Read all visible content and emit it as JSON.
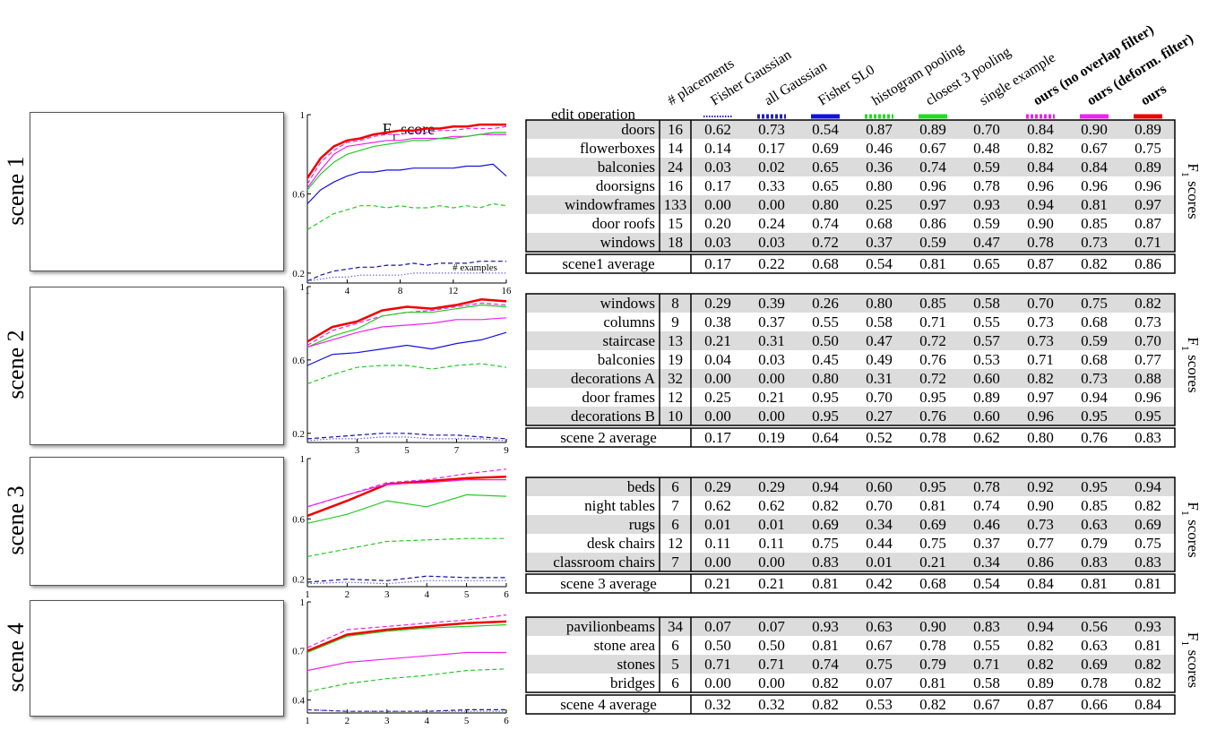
{
  "chart_title": "score",
  "chart_title_main": "F",
  "chart_title_sub": "1",
  "side_label_main": "F",
  "side_label_sub": "1",
  "side_label_rest": "scores",
  "examples_label": "# examples",
  "header": {
    "edit_operation": "edit operation",
    "placements": "# placements",
    "methods": [
      {
        "name": "Fisher Gaussian",
        "color": "#1f1fbf",
        "style": "dotted"
      },
      {
        "name": "all Gaussian",
        "color": "#1f1fbf",
        "style": "dashed"
      },
      {
        "name": "Fisher SL0",
        "color": "#1111dd",
        "style": "solid"
      },
      {
        "name": "histogram pooling",
        "color": "#22dd22",
        "style": "dashed"
      },
      {
        "name": "closest 3 pooling",
        "color": "#22dd22",
        "style": "solid"
      },
      {
        "name": "single example",
        "color": "#dd22dd",
        "style": "none"
      },
      {
        "name": "ours (no overlap filter)",
        "color": "#ee22ee",
        "style": "dashed",
        "bold": true
      },
      {
        "name": "ours (deform. filter)",
        "color": "#ee22ee",
        "style": "solid",
        "bold": true
      },
      {
        "name": "ours",
        "color": "#ee0000",
        "style": "solid",
        "bold": true
      }
    ]
  },
  "scenes": [
    {
      "label": "scene 1",
      "average_label": "scene1 average",
      "rows": [
        {
          "op": "doors",
          "n": "16",
          "v": [
            "0.62",
            "0.73",
            "0.54",
            "0.87",
            "0.89",
            "0.70",
            "0.84",
            "0.90",
            "0.89"
          ]
        },
        {
          "op": "flowerboxes",
          "n": "14",
          "v": [
            "0.14",
            "0.17",
            "0.69",
            "0.46",
            "0.67",
            "0.48",
            "0.82",
            "0.67",
            "0.75"
          ]
        },
        {
          "op": "balconies",
          "n": "24",
          "v": [
            "0.03",
            "0.02",
            "0.65",
            "0.36",
            "0.74",
            "0.59",
            "0.84",
            "0.84",
            "0.89"
          ]
        },
        {
          "op": "doorsigns",
          "n": "16",
          "v": [
            "0.17",
            "0.33",
            "0.65",
            "0.80",
            "0.96",
            "0.78",
            "0.96",
            "0.96",
            "0.96"
          ]
        },
        {
          "op": "windowframes",
          "n": "133",
          "v": [
            "0.00",
            "0.00",
            "0.80",
            "0.25",
            "0.97",
            "0.93",
            "0.94",
            "0.81",
            "0.97"
          ]
        },
        {
          "op": "door roofs",
          "n": "15",
          "v": [
            "0.20",
            "0.24",
            "0.74",
            "0.68",
            "0.86",
            "0.59",
            "0.90",
            "0.85",
            "0.87"
          ]
        },
        {
          "op": "windows",
          "n": "18",
          "v": [
            "0.03",
            "0.03",
            "0.72",
            "0.37",
            "0.59",
            "0.47",
            "0.78",
            "0.73",
            "0.71"
          ]
        }
      ],
      "average": [
        "0.17",
        "0.22",
        "0.68",
        "0.54",
        "0.81",
        "0.65",
        "0.87",
        "0.82",
        "0.86"
      ]
    },
    {
      "label": "scene 2",
      "average_label": "scene 2 average",
      "rows": [
        {
          "op": "windows",
          "n": "8",
          "v": [
            "0.29",
            "0.39",
            "0.26",
            "0.80",
            "0.85",
            "0.58",
            "0.70",
            "0.75",
            "0.82"
          ]
        },
        {
          "op": "columns",
          "n": "9",
          "v": [
            "0.38",
            "0.37",
            "0.55",
            "0.58",
            "0.71",
            "0.55",
            "0.73",
            "0.68",
            "0.73"
          ]
        },
        {
          "op": "staircase",
          "n": "13",
          "v": [
            "0.21",
            "0.31",
            "0.50",
            "0.47",
            "0.72",
            "0.57",
            "0.73",
            "0.59",
            "0.70"
          ]
        },
        {
          "op": "balconies",
          "n": "19",
          "v": [
            "0.04",
            "0.03",
            "0.45",
            "0.49",
            "0.76",
            "0.53",
            "0.71",
            "0.68",
            "0.77"
          ]
        },
        {
          "op": "decorations A",
          "n": "32",
          "v": [
            "0.00",
            "0.00",
            "0.80",
            "0.31",
            "0.72",
            "0.60",
            "0.82",
            "0.73",
            "0.88"
          ]
        },
        {
          "op": "door frames",
          "n": "12",
          "v": [
            "0.25",
            "0.21",
            "0.95",
            "0.70",
            "0.95",
            "0.89",
            "0.97",
            "0.94",
            "0.96"
          ]
        },
        {
          "op": "decorations B",
          "n": "10",
          "v": [
            "0.00",
            "0.00",
            "0.95",
            "0.27",
            "0.76",
            "0.60",
            "0.96",
            "0.95",
            "0.95"
          ]
        }
      ],
      "average": [
        "0.17",
        "0.19",
        "0.64",
        "0.52",
        "0.78",
        "0.62",
        "0.80",
        "0.76",
        "0.83"
      ]
    },
    {
      "label": "scene 3",
      "average_label": "scene 3 average",
      "rows": [
        {
          "op": "beds",
          "n": "6",
          "v": [
            "0.29",
            "0.29",
            "0.94",
            "0.60",
            "0.95",
            "0.78",
            "0.92",
            "0.95",
            "0.94"
          ]
        },
        {
          "op": "night tables",
          "n": "7",
          "v": [
            "0.62",
            "0.62",
            "0.82",
            "0.70",
            "0.81",
            "0.74",
            "0.90",
            "0.85",
            "0.82"
          ]
        },
        {
          "op": "rugs",
          "n": "6",
          "v": [
            "0.01",
            "0.01",
            "0.69",
            "0.34",
            "0.69",
            "0.46",
            "0.73",
            "0.63",
            "0.69"
          ]
        },
        {
          "op": "desk chairs",
          "n": "12",
          "v": [
            "0.11",
            "0.11",
            "0.75",
            "0.44",
            "0.75",
            "0.37",
            "0.77",
            "0.79",
            "0.75"
          ]
        },
        {
          "op": "classroom chairs",
          "n": "7",
          "v": [
            "0.00",
            "0.00",
            "0.83",
            "0.01",
            "0.21",
            "0.34",
            "0.86",
            "0.83",
            "0.83"
          ]
        }
      ],
      "average": [
        "0.21",
        "0.21",
        "0.81",
        "0.42",
        "0.68",
        "0.54",
        "0.84",
        "0.81",
        "0.81"
      ]
    },
    {
      "label": "scene 4",
      "average_label": "scene 4 average",
      "rows": [
        {
          "op": "pavilionbeams",
          "n": "34",
          "v": [
            "0.07",
            "0.07",
            "0.93",
            "0.63",
            "0.90",
            "0.83",
            "0.94",
            "0.56",
            "0.93"
          ]
        },
        {
          "op": "stone area",
          "n": "6",
          "v": [
            "0.50",
            "0.50",
            "0.81",
            "0.67",
            "0.78",
            "0.55",
            "0.82",
            "0.63",
            "0.81"
          ]
        },
        {
          "op": "stones",
          "n": "5",
          "v": [
            "0.71",
            "0.71",
            "0.74",
            "0.75",
            "0.79",
            "0.71",
            "0.82",
            "0.69",
            "0.82"
          ]
        },
        {
          "op": "bridges",
          "n": "6",
          "v": [
            "0.00",
            "0.00",
            "0.82",
            "0.07",
            "0.81",
            "0.58",
            "0.89",
            "0.78",
            "0.82"
          ]
        }
      ],
      "average": [
        "0.32",
        "0.32",
        "0.82",
        "0.53",
        "0.82",
        "0.67",
        "0.87",
        "0.66",
        "0.84"
      ]
    }
  ],
  "chart_data": [
    {
      "type": "line",
      "title": "F1 score",
      "xlabel": "# examples",
      "xlim": [
        1,
        16
      ],
      "ylim": [
        0.15,
        1.0
      ],
      "xticks": [
        1,
        4,
        8,
        12,
        16
      ],
      "yticks": [
        0.2,
        0.6,
        1
      ],
      "x": [
        1,
        2,
        3,
        4,
        5,
        6,
        7,
        8,
        9,
        10,
        11,
        12,
        13,
        14,
        15,
        16
      ],
      "series": [
        {
          "color": "#ee0000",
          "style": "solid",
          "width": 2.5,
          "values": [
            0.68,
            0.78,
            0.84,
            0.87,
            0.88,
            0.9,
            0.91,
            0.92,
            0.92,
            0.93,
            0.93,
            0.94,
            0.94,
            0.95,
            0.95,
            0.95
          ]
        },
        {
          "color": "#ee22ee",
          "style": "dashed",
          "width": 1.2,
          "values": [
            0.65,
            0.76,
            0.82,
            0.86,
            0.87,
            0.89,
            0.9,
            0.9,
            0.91,
            0.91,
            0.92,
            0.92,
            0.93,
            0.93,
            0.93,
            0.94
          ]
        },
        {
          "color": "#ee22ee",
          "style": "solid",
          "width": 1.2,
          "values": [
            0.63,
            0.72,
            0.8,
            0.84,
            0.85,
            0.86,
            0.87,
            0.87,
            0.88,
            0.88,
            0.88,
            0.89,
            0.89,
            0.9,
            0.9,
            0.9
          ]
        },
        {
          "color": "#22cc22",
          "style": "solid",
          "width": 1.2,
          "values": [
            0.62,
            0.7,
            0.76,
            0.8,
            0.82,
            0.84,
            0.85,
            0.86,
            0.87,
            0.87,
            0.88,
            0.88,
            0.89,
            0.9,
            0.91,
            0.91
          ]
        },
        {
          "color": "#22cc22",
          "style": "dashed",
          "width": 1.2,
          "values": [
            0.42,
            0.46,
            0.5,
            0.52,
            0.54,
            0.54,
            0.53,
            0.54,
            0.53,
            0.53,
            0.54,
            0.53,
            0.54,
            0.53,
            0.55,
            0.54
          ]
        },
        {
          "color": "#1111dd",
          "style": "solid",
          "width": 1.2,
          "values": [
            0.55,
            0.62,
            0.66,
            0.69,
            0.71,
            0.71,
            0.72,
            0.72,
            0.73,
            0.73,
            0.73,
            0.73,
            0.74,
            0.74,
            0.75,
            0.69
          ]
        },
        {
          "color": "#1111aa",
          "style": "dashed",
          "width": 1.2,
          "values": [
            0.16,
            0.19,
            0.21,
            0.22,
            0.23,
            0.23,
            0.24,
            0.24,
            0.25,
            0.24,
            0.25,
            0.25,
            0.25,
            0.26,
            0.26,
            0.26
          ]
        },
        {
          "color": "#6666ee",
          "style": "dotted",
          "width": 1.2,
          "values": [
            0.16,
            0.17,
            0.18,
            0.18,
            0.19,
            0.19,
            0.19,
            0.19,
            0.2,
            0.2,
            0.2,
            0.2,
            0.2,
            0.2,
            0.2,
            0.2
          ]
        }
      ]
    },
    {
      "type": "line",
      "xlim": [
        1,
        9
      ],
      "ylim": [
        0.15,
        1.0
      ],
      "xticks": [
        3,
        5,
        7,
        9
      ],
      "yticks": [
        0.2,
        0.6,
        1
      ],
      "x": [
        1,
        2,
        3,
        4,
        5,
        6,
        7,
        8,
        9
      ],
      "series": [
        {
          "color": "#ee0000",
          "style": "solid",
          "width": 2.5,
          "values": [
            0.7,
            0.78,
            0.81,
            0.87,
            0.89,
            0.88,
            0.9,
            0.93,
            0.92
          ]
        },
        {
          "color": "#ee22ee",
          "style": "dashed",
          "width": 1.2,
          "values": [
            0.68,
            0.76,
            0.8,
            0.84,
            0.86,
            0.87,
            0.89,
            0.91,
            0.9
          ]
        },
        {
          "color": "#22cc22",
          "style": "solid",
          "width": 1.2,
          "values": [
            0.67,
            0.73,
            0.77,
            0.84,
            0.86,
            0.86,
            0.88,
            0.9,
            0.89
          ]
        },
        {
          "color": "#ee22ee",
          "style": "solid",
          "width": 1.2,
          "values": [
            0.67,
            0.71,
            0.75,
            0.78,
            0.79,
            0.8,
            0.82,
            0.82,
            0.83
          ]
        },
        {
          "color": "#1111dd",
          "style": "solid",
          "width": 1.2,
          "values": [
            0.57,
            0.63,
            0.64,
            0.66,
            0.68,
            0.66,
            0.69,
            0.71,
            0.75
          ]
        },
        {
          "color": "#22cc22",
          "style": "dashed",
          "width": 1.2,
          "values": [
            0.47,
            0.52,
            0.56,
            0.57,
            0.57,
            0.55,
            0.57,
            0.58,
            0.56
          ]
        },
        {
          "color": "#1111aa",
          "style": "dashed",
          "width": 1.2,
          "values": [
            0.17,
            0.18,
            0.19,
            0.2,
            0.2,
            0.19,
            0.19,
            0.18,
            0.17
          ]
        },
        {
          "color": "#6666ee",
          "style": "dotted",
          "width": 1.2,
          "values": [
            0.16,
            0.17,
            0.17,
            0.18,
            0.18,
            0.17,
            0.17,
            0.17,
            0.16
          ]
        }
      ]
    },
    {
      "type": "line",
      "xlim": [
        1,
        6
      ],
      "ylim": [
        0.15,
        1.0
      ],
      "xticks": [
        1,
        2,
        3,
        4,
        5,
        6
      ],
      "yticks": [
        0.2,
        0.6,
        1
      ],
      "x": [
        1,
        2,
        3,
        4,
        5,
        6
      ],
      "series": [
        {
          "color": "#ee0000",
          "style": "solid",
          "width": 2.5,
          "values": [
            0.62,
            0.72,
            0.83,
            0.85,
            0.87,
            0.88
          ]
        },
        {
          "color": "#ee22ee",
          "style": "dashed",
          "width": 1.2,
          "values": [
            0.68,
            0.76,
            0.84,
            0.86,
            0.9,
            0.93
          ]
        },
        {
          "color": "#ee22ee",
          "style": "solid",
          "width": 1.2,
          "values": [
            0.68,
            0.76,
            0.83,
            0.84,
            0.86,
            0.86
          ]
        },
        {
          "color": "#22cc22",
          "style": "solid",
          "width": 1.2,
          "values": [
            0.57,
            0.63,
            0.72,
            0.68,
            0.76,
            0.75
          ]
        },
        {
          "color": "#22cc22",
          "style": "dashed",
          "width": 1.2,
          "values": [
            0.35,
            0.4,
            0.45,
            0.46,
            0.47,
            0.47
          ]
        },
        {
          "color": "#1111aa",
          "style": "dashed",
          "width": 1.2,
          "values": [
            0.18,
            0.2,
            0.19,
            0.22,
            0.21,
            0.21
          ]
        },
        {
          "color": "#6666ee",
          "style": "dotted",
          "width": 1.2,
          "values": [
            0.17,
            0.18,
            0.17,
            0.19,
            0.19,
            0.19
          ]
        }
      ]
    },
    {
      "type": "line",
      "xlim": [
        1,
        6
      ],
      "ylim": [
        0.32,
        1.0
      ],
      "xticks": [
        1,
        2,
        3,
        4,
        5,
        6
      ],
      "yticks": [
        0.4,
        0.7,
        1
      ],
      "x": [
        1,
        2,
        3,
        4,
        5,
        6
      ],
      "series": [
        {
          "color": "#ee0000",
          "style": "solid",
          "width": 2.5,
          "values": [
            0.7,
            0.8,
            0.83,
            0.85,
            0.87,
            0.88
          ]
        },
        {
          "color": "#ee22ee",
          "style": "dashed",
          "width": 1.2,
          "values": [
            0.72,
            0.83,
            0.85,
            0.87,
            0.89,
            0.92
          ]
        },
        {
          "color": "#22cc22",
          "style": "solid",
          "width": 1.2,
          "values": [
            0.69,
            0.79,
            0.82,
            0.84,
            0.85,
            0.86
          ]
        },
        {
          "color": "#ee22ee",
          "style": "solid",
          "width": 1.2,
          "values": [
            0.58,
            0.63,
            0.65,
            0.67,
            0.69,
            0.69
          ]
        },
        {
          "color": "#22cc22",
          "style": "dashed",
          "width": 1.2,
          "values": [
            0.45,
            0.5,
            0.53,
            0.55,
            0.58,
            0.59
          ]
        },
        {
          "color": "#1111aa",
          "style": "dashed",
          "width": 1.2,
          "values": [
            0.34,
            0.33,
            0.33,
            0.33,
            0.34,
            0.34
          ]
        },
        {
          "color": "#6666ee",
          "style": "dotted",
          "width": 1.2,
          "values": [
            0.34,
            0.33,
            0.33,
            0.33,
            0.33,
            0.33
          ]
        }
      ]
    }
  ]
}
